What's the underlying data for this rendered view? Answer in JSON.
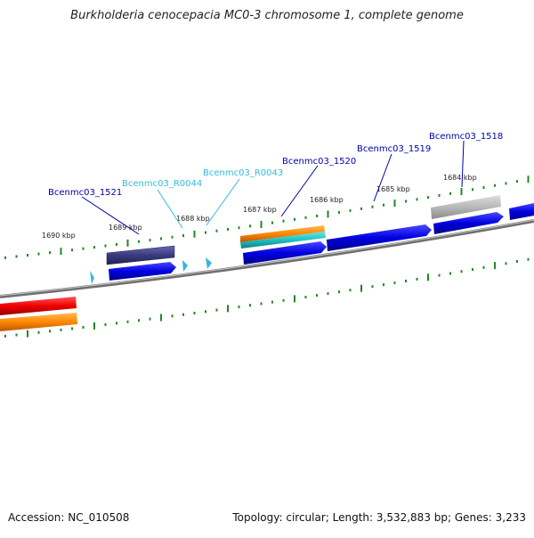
{
  "title": "Burkholderia cenocepacia MC0-3 chromosome 1, complete genome",
  "footer": {
    "accession_label": "Accession:",
    "accession": "NC_010508",
    "topology_text": "Topology: circular; Length: 3,532,883 bp; Genes: 3,233"
  },
  "kbp_labels": [
    "1690 kbp",
    "1689 kbp",
    "1688 kbp",
    "1687 kbp",
    "1686 kbp",
    "1685 kbp",
    "1684 kbp"
  ],
  "gene_labels": [
    {
      "text": "Bcenmc03_1521",
      "color": "#0000aa"
    },
    {
      "text": "Bcenmc03_R0044",
      "color": "#33bbdd"
    },
    {
      "text": "Bcenmc03_R0043",
      "color": "#33bbdd"
    },
    {
      "text": "Bcenmc03_1520",
      "color": "#0000aa"
    },
    {
      "text": "Bcenmc03_1519",
      "color": "#0000aa"
    },
    {
      "text": "Bcenmc03_1518",
      "color": "#0000aa"
    }
  ],
  "colors": {
    "backbone": "#7a7a7a",
    "cds_forward": "#0000dd",
    "cds_reverse": "#3a3a80",
    "trna": "#33b5e5",
    "red_feature": "#ee0000",
    "orange_feature": "#ff8800",
    "cyan_feature": "#1fc0c0",
    "gray_feature": "#b0b0b0",
    "tick": "#228822"
  }
}
